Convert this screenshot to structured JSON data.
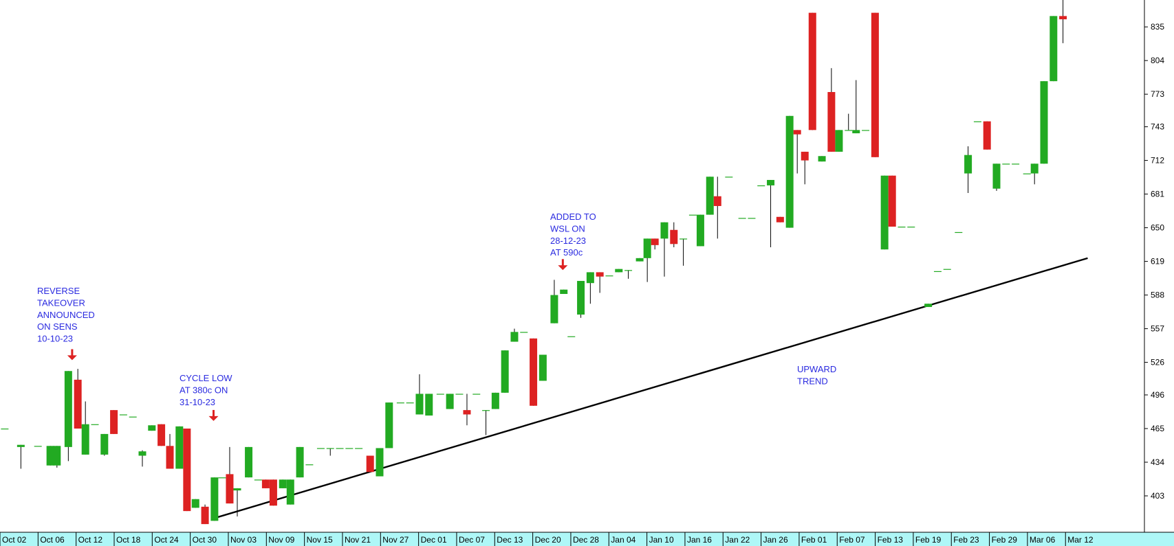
{
  "chart_data": {
    "type": "candlestick",
    "title": "",
    "xlabel": "",
    "ylabel": "",
    "ylim": [
      372,
      862
    ],
    "y_ticks": [
      403,
      434,
      465,
      496,
      526,
      557,
      588,
      619,
      650,
      681,
      712,
      743,
      773,
      804,
      835
    ],
    "x_ticks": [
      "Oct 02",
      "Oct 06",
      "Oct 12",
      "Oct 18",
      "Oct 24",
      "Oct 30",
      "Nov 03",
      "Nov 09",
      "Nov 15",
      "Nov 21",
      "Nov 27",
      "Dec 01",
      "Dec 07",
      "Dec 13",
      "Dec 20",
      "Dec 28",
      "Jan 04",
      "Jan 10",
      "Jan 16",
      "Jan 22",
      "Jan 26",
      "Feb 01",
      "Feb 07",
      "Feb 13",
      "Feb 19",
      "Feb 23",
      "Feb 29",
      "Mar 06",
      "Mar 12"
    ],
    "colors": {
      "up": "#22aa22",
      "down": "#dd2222",
      "trendline": "#000000",
      "annotation_text": "#2a2ae0",
      "annotation_arrow": "#dd2222",
      "axis_band": "#aef7f7"
    },
    "grid": false,
    "candles": [
      {
        "x": 0.5,
        "o": 465,
        "h": 465,
        "l": 465,
        "c": 465
      },
      {
        "x": 2.2,
        "o": 448,
        "h": 450,
        "l": 428,
        "c": 450
      },
      {
        "x": 4.0,
        "o": 449,
        "h": 449,
        "l": 449,
        "c": 449
      },
      {
        "x": 5.3,
        "o": 431,
        "h": 449,
        "l": 431,
        "c": 449
      },
      {
        "x": 6.0,
        "o": 431,
        "h": 449,
        "l": 429,
        "c": 449
      },
      {
        "x": 7.2,
        "o": 448,
        "h": 518,
        "l": 435,
        "c": 518
      },
      {
        "x": 8.2,
        "o": 510,
        "h": 520,
        "l": 465,
        "c": 465
      },
      {
        "x": 9.0,
        "o": 441,
        "h": 490,
        "l": 441,
        "c": 469
      },
      {
        "x": 10.0,
        "o": 469,
        "h": 469,
        "l": 469,
        "c": 469
      },
      {
        "x": 11.0,
        "o": 441,
        "h": 460,
        "l": 440,
        "c": 460
      },
      {
        "x": 12.0,
        "o": 482,
        "h": 482,
        "l": 460,
        "c": 460
      },
      {
        "x": 13.0,
        "o": 478,
        "h": 478,
        "l": 478,
        "c": 478
      },
      {
        "x": 14.0,
        "o": 476,
        "h": 476,
        "l": 476,
        "c": 476
      },
      {
        "x": 15.0,
        "o": 440,
        "h": 445,
        "l": 430,
        "c": 444
      },
      {
        "x": 16.0,
        "o": 463,
        "h": 468,
        "l": 463,
        "c": 468
      },
      {
        "x": 17.0,
        "o": 469,
        "h": 469,
        "l": 449,
        "c": 449
      },
      {
        "x": 17.9,
        "o": 449,
        "h": 460,
        "l": 428,
        "c": 428
      },
      {
        "x": 18.9,
        "o": 428,
        "h": 467,
        "l": 428,
        "c": 467
      },
      {
        "x": 19.7,
        "o": 465,
        "h": 465,
        "l": 389,
        "c": 389
      },
      {
        "x": 20.6,
        "o": 392,
        "h": 400,
        "l": 392,
        "c": 400
      },
      {
        "x": 21.6,
        "o": 393,
        "h": 395,
        "l": 377,
        "c": 377
      },
      {
        "x": 22.6,
        "o": 380,
        "h": 420,
        "l": 380,
        "c": 420
      },
      {
        "x": 23.4,
        "o": 420,
        "h": 420,
        "l": 420,
        "c": 420
      },
      {
        "x": 24.2,
        "o": 423,
        "h": 448,
        "l": 396,
        "c": 396
      },
      {
        "x": 25.0,
        "o": 408,
        "h": 410,
        "l": 384,
        "c": 410
      },
      {
        "x": 26.2,
        "o": 420,
        "h": 448,
        "l": 420,
        "c": 448
      },
      {
        "x": 27.2,
        "o": 418,
        "h": 418,
        "l": 418,
        "c": 418
      },
      {
        "x": 28.0,
        "o": 418,
        "h": 418,
        "l": 410,
        "c": 410
      },
      {
        "x": 28.8,
        "o": 418,
        "h": 418,
        "l": 394,
        "c": 394
      },
      {
        "x": 29.8,
        "o": 410,
        "h": 418,
        "l": 410,
        "c": 418
      },
      {
        "x": 30.6,
        "o": 395,
        "h": 418,
        "l": 395,
        "c": 418
      },
      {
        "x": 31.6,
        "o": 420,
        "h": 448,
        "l": 420,
        "c": 448
      },
      {
        "x": 32.6,
        "o": 432,
        "h": 432,
        "l": 432,
        "c": 432
      },
      {
        "x": 33.8,
        "o": 447,
        "h": 447,
        "l": 447,
        "c": 447
      },
      {
        "x": 34.8,
        "o": 447,
        "h": 447,
        "l": 440,
        "c": 447
      },
      {
        "x": 35.8,
        "o": 447,
        "h": 447,
        "l": 447,
        "c": 447
      },
      {
        "x": 36.8,
        "o": 447,
        "h": 447,
        "l": 447,
        "c": 447
      },
      {
        "x": 37.8,
        "o": 447,
        "h": 447,
        "l": 447,
        "c": 447
      },
      {
        "x": 39.0,
        "o": 440,
        "h": 440,
        "l": 425,
        "c": 425
      },
      {
        "x": 40.0,
        "o": 421,
        "h": 447,
        "l": 421,
        "c": 447
      },
      {
        "x": 41.0,
        "o": 447,
        "h": 489,
        "l": 447,
        "c": 489
      },
      {
        "x": 42.2,
        "o": 489,
        "h": 489,
        "l": 489,
        "c": 489
      },
      {
        "x": 43.2,
        "o": 489,
        "h": 489,
        "l": 489,
        "c": 489
      },
      {
        "x": 44.2,
        "o": 478,
        "h": 515,
        "l": 478,
        "c": 497
      },
      {
        "x": 45.2,
        "o": 477,
        "h": 497,
        "l": 477,
        "c": 497
      },
      {
        "x": 46.4,
        "o": 497,
        "h": 497,
        "l": 497,
        "c": 497
      },
      {
        "x": 47.4,
        "o": 483,
        "h": 497,
        "l": 483,
        "c": 497
      },
      {
        "x": 48.4,
        "o": 497,
        "h": 497,
        "l": 497,
        "c": 497
      },
      {
        "x": 49.2,
        "o": 482,
        "h": 497,
        "l": 468,
        "c": 478
      },
      {
        "x": 50.2,
        "o": 497,
        "h": 497,
        "l": 497,
        "c": 497
      },
      {
        "x": 51.2,
        "o": 482,
        "h": 482,
        "l": 459,
        "c": 482
      },
      {
        "x": 52.2,
        "o": 483,
        "h": 498,
        "l": 483,
        "c": 498
      },
      {
        "x": 53.2,
        "o": 498,
        "h": 537,
        "l": 498,
        "c": 537
      },
      {
        "x": 54.2,
        "o": 545,
        "h": 557,
        "l": 545,
        "c": 554
      },
      {
        "x": 55.2,
        "o": 554,
        "h": 554,
        "l": 554,
        "c": 554
      },
      {
        "x": 56.2,
        "o": 548,
        "h": 548,
        "l": 486,
        "c": 486
      },
      {
        "x": 57.2,
        "o": 509,
        "h": 533,
        "l": 509,
        "c": 533
      },
      {
        "x": 58.4,
        "o": 562,
        "h": 602,
        "l": 562,
        "c": 588
      },
      {
        "x": 59.4,
        "o": 589,
        "h": 593,
        "l": 589,
        "c": 593
      },
      {
        "x": 60.2,
        "o": 550,
        "h": 550,
        "l": 550,
        "c": 550
      },
      {
        "x": 61.2,
        "o": 570,
        "h": 601,
        "l": 567,
        "c": 601
      },
      {
        "x": 62.2,
        "o": 599,
        "h": 609,
        "l": 580,
        "c": 609
      },
      {
        "x": 63.2,
        "o": 609,
        "h": 609,
        "l": 590,
        "c": 605
      },
      {
        "x": 64.2,
        "o": 606,
        "h": 606,
        "l": 606,
        "c": 606
      },
      {
        "x": 65.2,
        "o": 609,
        "h": 612,
        "l": 609,
        "c": 612
      },
      {
        "x": 66.2,
        "o": 611,
        "h": 611,
        "l": 603,
        "c": 611
      },
      {
        "x": 67.4,
        "o": 619,
        "h": 622,
        "l": 619,
        "c": 622
      },
      {
        "x": 68.2,
        "o": 622,
        "h": 640,
        "l": 600,
        "c": 640
      },
      {
        "x": 69.0,
        "o": 640,
        "h": 640,
        "l": 630,
        "c": 634
      },
      {
        "x": 70.0,
        "o": 640,
        "h": 655,
        "l": 605,
        "c": 655
      },
      {
        "x": 71.0,
        "o": 648,
        "h": 655,
        "l": 632,
        "c": 635
      },
      {
        "x": 72.0,
        "o": 640,
        "h": 640,
        "l": 615,
        "c": 640
      },
      {
        "x": 73.0,
        "o": 662,
        "h": 662,
        "l": 662,
        "c": 662
      },
      {
        "x": 73.8,
        "o": 633,
        "h": 662,
        "l": 633,
        "c": 662
      },
      {
        "x": 74.8,
        "o": 662,
        "h": 697,
        "l": 662,
        "c": 697
      },
      {
        "x": 75.6,
        "o": 679,
        "h": 697,
        "l": 640,
        "c": 670
      },
      {
        "x": 76.8,
        "o": 697,
        "h": 697,
        "l": 697,
        "c": 697
      },
      {
        "x": 78.2,
        "o": 659,
        "h": 659,
        "l": 659,
        "c": 659
      },
      {
        "x": 79.2,
        "o": 659,
        "h": 659,
        "l": 659,
        "c": 659
      },
      {
        "x": 80.2,
        "o": 689,
        "h": 689,
        "l": 689,
        "c": 689
      },
      {
        "x": 81.2,
        "o": 689,
        "h": 694,
        "l": 632,
        "c": 694
      },
      {
        "x": 82.2,
        "o": 660,
        "h": 660,
        "l": 655,
        "c": 655
      },
      {
        "x": 83.2,
        "o": 650,
        "h": 753,
        "l": 650,
        "c": 753
      },
      {
        "x": 84.0,
        "o": 740,
        "h": 740,
        "l": 700,
        "c": 736
      },
      {
        "x": 84.8,
        "o": 720,
        "h": 720,
        "l": 690,
        "c": 712
      },
      {
        "x": 85.6,
        "o": 848,
        "h": 848,
        "l": 740,
        "c": 740
      },
      {
        "x": 86.6,
        "o": 711,
        "h": 716,
        "l": 711,
        "c": 716
      },
      {
        "x": 87.6,
        "o": 775,
        "h": 797,
        "l": 720,
        "c": 720
      },
      {
        "x": 88.4,
        "o": 720,
        "h": 740,
        "l": 720,
        "c": 740
      },
      {
        "x": 89.4,
        "o": 740,
        "h": 755,
        "l": 740,
        "c": 740
      },
      {
        "x": 90.2,
        "o": 737,
        "h": 786,
        "l": 737,
        "c": 740
      },
      {
        "x": 91.2,
        "o": 740,
        "h": 740,
        "l": 740,
        "c": 740
      },
      {
        "x": 92.2,
        "o": 848,
        "h": 848,
        "l": 715,
        "c": 715
      },
      {
        "x": 93.2,
        "o": 630,
        "h": 698,
        "l": 630,
        "c": 698
      },
      {
        "x": 94.0,
        "o": 698,
        "h": 698,
        "l": 651,
        "c": 651
      },
      {
        "x": 95.0,
        "o": 651,
        "h": 651,
        "l": 651,
        "c": 651
      },
      {
        "x": 96.0,
        "o": 651,
        "h": 651,
        "l": 651,
        "c": 651
      },
      {
        "x": 97.8,
        "o": 577,
        "h": 580,
        "l": 577,
        "c": 580
      },
      {
        "x": 98.8,
        "o": 610,
        "h": 610,
        "l": 610,
        "c": 610
      },
      {
        "x": 99.8,
        "o": 612,
        "h": 612,
        "l": 612,
        "c": 612
      },
      {
        "x": 101.0,
        "o": 646,
        "h": 646,
        "l": 646,
        "c": 646
      },
      {
        "x": 102.0,
        "o": 700,
        "h": 725,
        "l": 682,
        "c": 717
      },
      {
        "x": 103.0,
        "o": 748,
        "h": 748,
        "l": 748,
        "c": 748
      },
      {
        "x": 104.0,
        "o": 748,
        "h": 748,
        "l": 722,
        "c": 722
      },
      {
        "x": 105.0,
        "o": 686,
        "h": 709,
        "l": 684,
        "c": 709
      },
      {
        "x": 106.0,
        "o": 709,
        "h": 709,
        "l": 709,
        "c": 709
      },
      {
        "x": 107.0,
        "o": 709,
        "h": 709,
        "l": 709,
        "c": 709
      },
      {
        "x": 108.2,
        "o": 700,
        "h": 700,
        "l": 700,
        "c": 700
      },
      {
        "x": 109.0,
        "o": 700,
        "h": 709,
        "l": 690,
        "c": 709
      },
      {
        "x": 110.0,
        "o": 709,
        "h": 785,
        "l": 709,
        "c": 785
      },
      {
        "x": 111.0,
        "o": 785,
        "h": 845,
        "l": 785,
        "c": 845
      },
      {
        "x": 112.0,
        "o": 845,
        "h": 862,
        "l": 820,
        "c": 842
      }
    ],
    "trendline": [
      {
        "x": 22.4,
        "y": 382
      },
      {
        "x": 114.6,
        "y": 622
      }
    ],
    "annotations": [
      {
        "lines": [
          "REVERSE",
          "TAKEOVER",
          "ANNOUNCED",
          "ON SENS",
          "10-10-23"
        ],
        "arrow_x": 7.6,
        "arrow_y": 528
      },
      {
        "lines": [
          "CYCLE LOW",
          "AT 380c ON",
          "31-10-23"
        ],
        "arrow_x": 22.5,
        "arrow_y": 472
      },
      {
        "lines": [
          "ADDED TO",
          "WSL ON",
          "28-12-23",
          "AT 590c"
        ],
        "arrow_x": 59.3,
        "arrow_y": 611
      },
      {
        "lines": [
          "UPWARD",
          "TREND"
        ]
      }
    ]
  }
}
